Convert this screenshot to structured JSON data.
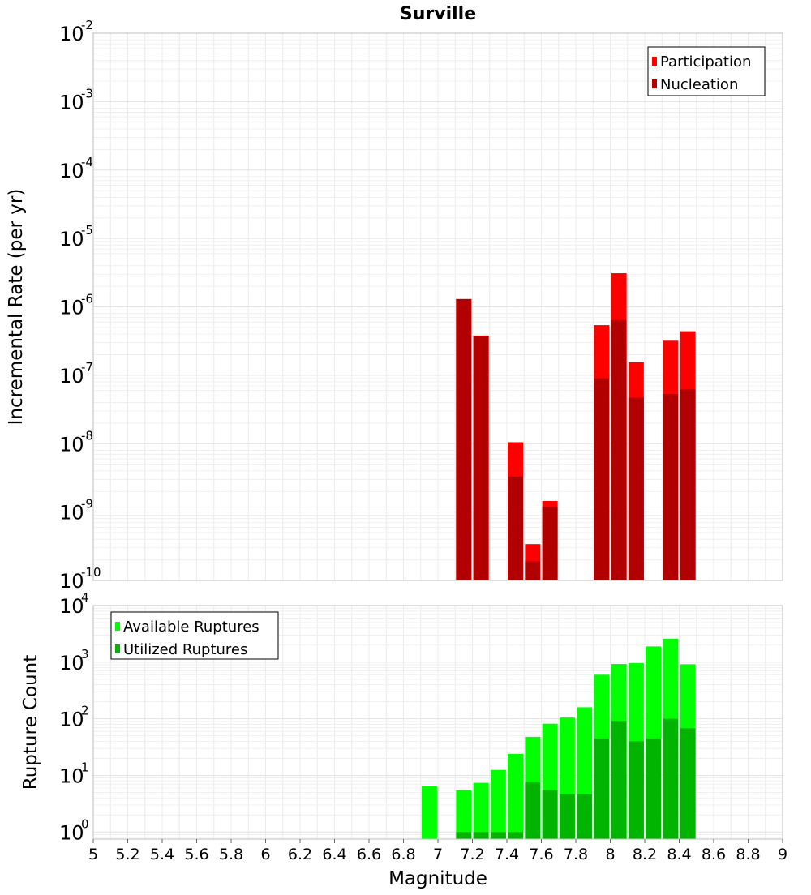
{
  "chart_data": [
    {
      "type": "bar",
      "title": "Surville",
      "xlabel": "",
      "ylabel": "Incremental Rate (per yr)",
      "yscale": "log",
      "xlim": [
        5,
        9
      ],
      "ylim": [
        1e-10,
        0.01
      ],
      "ytick_exponents": [
        "-2",
        "-3",
        "-4",
        "-5",
        "-6",
        "-7",
        "-8",
        "-9",
        "-10"
      ],
      "grid": true,
      "legend": "top-right",
      "series": [
        {
          "name": "Participation",
          "color": "#ff0000",
          "x": [
            7.15,
            7.25,
            7.45,
            7.55,
            7.65,
            7.95,
            8.05,
            8.15,
            8.35,
            8.45
          ],
          "values": [
            1.3e-06,
            3.8e-07,
            1.05e-08,
            3.4e-10,
            1.45e-09,
            5.4e-07,
            3.1e-06,
            1.55e-07,
            3.2e-07,
            4.4e-07
          ]
        },
        {
          "name": "Nucleation",
          "color": "#b20000",
          "x": [
            7.15,
            7.25,
            7.45,
            7.55,
            7.65,
            7.95,
            8.05,
            8.15,
            8.35,
            8.45
          ],
          "values": [
            1.3e-06,
            3.8e-07,
            3.3e-09,
            1.9e-10,
            1.2e-09,
            9e-08,
            6.4e-07,
            4.7e-08,
            5.3e-08,
            6.2e-08
          ]
        }
      ]
    },
    {
      "type": "bar",
      "title": "",
      "xlabel": "Magnitude",
      "ylabel": "Rupture Count",
      "yscale": "log",
      "xlim": [
        5,
        9
      ],
      "ylim": [
        0.75,
        10000
      ],
      "ytick_exponents": [
        "4",
        "3",
        "2",
        "1",
        "0"
      ],
      "xticks": [
        "5",
        "5.2",
        "5.4",
        "5.6",
        "5.8",
        "6",
        "6.2",
        "6.4",
        "6.6",
        "6.8",
        "7",
        "7.2",
        "7.4",
        "7.6",
        "7.8",
        "8",
        "8.2",
        "8.4",
        "8.6",
        "8.8",
        "9"
      ],
      "grid": true,
      "legend": "top-left",
      "series": [
        {
          "name": "Available Ruptures",
          "color": "#00ff00",
          "x": [
            6.95,
            7.15,
            7.25,
            7.35,
            7.45,
            7.55,
            7.65,
            7.75,
            7.85,
            7.95,
            8.05,
            8.15,
            8.25,
            8.35,
            8.45
          ],
          "values": [
            6.5,
            5.5,
            7.4,
            12.5,
            24,
            48,
            82,
            105,
            160,
            600,
            930,
            960,
            1900,
            2600,
            920
          ]
        },
        {
          "name": "Utilized Ruptures",
          "color": "#00b400",
          "x": [
            7.15,
            7.25,
            7.35,
            7.45,
            7.55,
            7.65,
            7.75,
            7.85,
            7.95,
            8.05,
            8.15,
            8.25,
            8.35,
            8.45
          ],
          "values": [
            1,
            1,
            1,
            1,
            7.5,
            5.5,
            4.6,
            4.6,
            45,
            92,
            40,
            45,
            100,
            68
          ]
        }
      ]
    }
  ]
}
